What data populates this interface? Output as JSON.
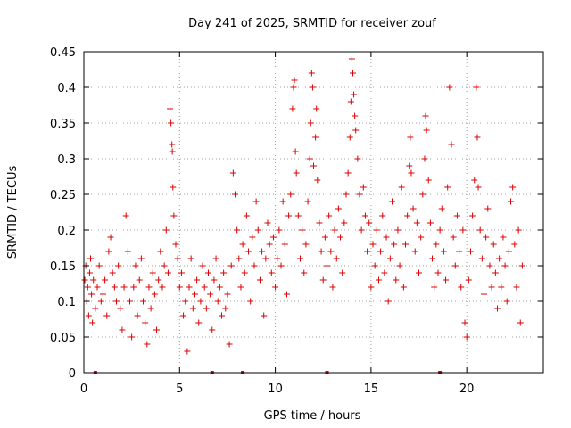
{
  "chart_data": {
    "type": "scatter",
    "title": "Day 241 of 2025, SRMTID for receiver zouf",
    "xlabel": "GPS time / hours",
    "ylabel": "SRMTID / TECUs",
    "xlim": [
      0,
      24
    ],
    "ylim": [
      0,
      0.45
    ],
    "xticks": [
      0,
      5,
      10,
      15,
      20
    ],
    "xtick_labels": [
      "0",
      "5",
      "10",
      "15",
      "20"
    ],
    "yticks": [
      0,
      0.05,
      0.1,
      0.15,
      0.2,
      0.25,
      0.3,
      0.35,
      0.4,
      0.45
    ],
    "ytick_labels": [
      "0",
      "0.05",
      "0.1",
      "0.15",
      "0.2",
      "0.25",
      "0.3",
      "0.35",
      "0.4",
      "0.45"
    ],
    "grid": true,
    "marker": "plus",
    "color": "#dd0000",
    "series": [
      {
        "name": "SRMTID",
        "points": [
          [
            0.05,
            0.13
          ],
          [
            0.1,
            0.15
          ],
          [
            0.15,
            0.1
          ],
          [
            0.2,
            0.12
          ],
          [
            0.25,
            0.08
          ],
          [
            0.3,
            0.14
          ],
          [
            0.35,
            0.16
          ],
          [
            0.4,
            0.11
          ],
          [
            0.45,
            0.07
          ],
          [
            0.5,
            0.13
          ],
          [
            0.6,
            0.09
          ],
          [
            0.7,
            0.12
          ],
          [
            0.8,
            0.15
          ],
          [
            0.9,
            0.1
          ],
          [
            1.0,
            0.11
          ],
          [
            1.1,
            0.13
          ],
          [
            1.2,
            0.08
          ],
          [
            1.3,
            0.17
          ],
          [
            1.4,
            0.19
          ],
          [
            1.5,
            0.14
          ],
          [
            1.6,
            0.12
          ],
          [
            1.7,
            0.1
          ],
          [
            1.8,
            0.15
          ],
          [
            1.9,
            0.09
          ],
          [
            2.0,
            0.06
          ],
          [
            2.1,
            0.12
          ],
          [
            2.2,
            0.22
          ],
          [
            2.3,
            0.17
          ],
          [
            2.4,
            0.1
          ],
          [
            2.5,
            0.05
          ],
          [
            2.6,
            0.12
          ],
          [
            2.7,
            0.15
          ],
          [
            2.8,
            0.08
          ],
          [
            2.9,
            0.13
          ],
          [
            3.0,
            0.16
          ],
          [
            3.1,
            0.1
          ],
          [
            3.2,
            0.07
          ],
          [
            3.3,
            0.04
          ],
          [
            3.4,
            0.12
          ],
          [
            3.5,
            0.09
          ],
          [
            3.6,
            0.14
          ],
          [
            3.7,
            0.11
          ],
          [
            3.8,
            0.06
          ],
          [
            3.9,
            0.13
          ],
          [
            4.0,
            0.17
          ],
          [
            4.1,
            0.12
          ],
          [
            4.2,
            0.15
          ],
          [
            4.3,
            0.2
          ],
          [
            4.4,
            0.14
          ],
          [
            4.5,
            0.37
          ],
          [
            4.55,
            0.35
          ],
          [
            4.6,
            0.32
          ],
          [
            4.62,
            0.31
          ],
          [
            4.65,
            0.26
          ],
          [
            4.7,
            0.22
          ],
          [
            4.8,
            0.18
          ],
          [
            4.9,
            0.16
          ],
          [
            5.0,
            0.12
          ],
          [
            5.1,
            0.14
          ],
          [
            5.2,
            0.08
          ],
          [
            5.3,
            0.1
          ],
          [
            5.4,
            0.03
          ],
          [
            5.5,
            0.12
          ],
          [
            5.6,
            0.16
          ],
          [
            5.7,
            0.09
          ],
          [
            5.8,
            0.11
          ],
          [
            5.9,
            0.13
          ],
          [
            6.0,
            0.07
          ],
          [
            6.1,
            0.1
          ],
          [
            6.2,
            0.15
          ],
          [
            6.3,
            0.12
          ],
          [
            6.4,
            0.09
          ],
          [
            6.5,
            0.14
          ],
          [
            6.6,
            0.11
          ],
          [
            6.7,
            0.06
          ],
          [
            6.8,
            0.13
          ],
          [
            6.9,
            0.16
          ],
          [
            7.0,
            0.1
          ],
          [
            7.1,
            0.12
          ],
          [
            7.2,
            0.08
          ],
          [
            7.3,
            0.14
          ],
          [
            7.4,
            0.09
          ],
          [
            7.5,
            0.11
          ],
          [
            7.6,
            0.04
          ],
          [
            7.7,
            0.15
          ],
          [
            7.8,
            0.28
          ],
          [
            7.9,
            0.25
          ],
          [
            8.0,
            0.2
          ],
          [
            8.1,
            0.16
          ],
          [
            8.2,
            0.12
          ],
          [
            8.3,
            0.18
          ],
          [
            8.4,
            0.14
          ],
          [
            8.5,
            0.22
          ],
          [
            8.6,
            0.17
          ],
          [
            8.7,
            0.1
          ],
          [
            8.8,
            0.19
          ],
          [
            8.9,
            0.15
          ],
          [
            9.0,
            0.24
          ],
          [
            9.1,
            0.2
          ],
          [
            9.2,
            0.13
          ],
          [
            9.3,
            0.17
          ],
          [
            9.4,
            0.08
          ],
          [
            9.5,
            0.16
          ],
          [
            9.6,
            0.21
          ],
          [
            9.7,
            0.18
          ],
          [
            9.8,
            0.14
          ],
          [
            9.9,
            0.19
          ],
          [
            10.0,
            0.12
          ],
          [
            10.1,
            0.16
          ],
          [
            10.2,
            0.2
          ],
          [
            10.3,
            0.15
          ],
          [
            10.4,
            0.24
          ],
          [
            10.5,
            0.18
          ],
          [
            10.6,
            0.11
          ],
          [
            10.7,
            0.22
          ],
          [
            10.8,
            0.25
          ],
          [
            10.9,
            0.37
          ],
          [
            10.95,
            0.4
          ],
          [
            11.0,
            0.41
          ],
          [
            11.05,
            0.31
          ],
          [
            11.1,
            0.28
          ],
          [
            11.2,
            0.22
          ],
          [
            11.3,
            0.16
          ],
          [
            11.4,
            0.2
          ],
          [
            11.5,
            0.14
          ],
          [
            11.6,
            0.18
          ],
          [
            11.7,
            0.24
          ],
          [
            11.8,
            0.3
          ],
          [
            11.85,
            0.35
          ],
          [
            11.9,
            0.42
          ],
          [
            11.95,
            0.4
          ],
          [
            12.0,
            0.29
          ],
          [
            12.1,
            0.33
          ],
          [
            12.15,
            0.37
          ],
          [
            12.2,
            0.27
          ],
          [
            12.3,
            0.21
          ],
          [
            12.4,
            0.17
          ],
          [
            12.5,
            0.13
          ],
          [
            12.6,
            0.19
          ],
          [
            12.7,
            0.15
          ],
          [
            12.8,
            0.22
          ],
          [
            12.9,
            0.17
          ],
          [
            13.0,
            0.12
          ],
          [
            13.1,
            0.2
          ],
          [
            13.2,
            0.16
          ],
          [
            13.3,
            0.23
          ],
          [
            13.4,
            0.19
          ],
          [
            13.5,
            0.14
          ],
          [
            13.6,
            0.21
          ],
          [
            13.7,
            0.25
          ],
          [
            13.8,
            0.28
          ],
          [
            13.9,
            0.33
          ],
          [
            13.95,
            0.38
          ],
          [
            14.0,
            0.44
          ],
          [
            14.05,
            0.42
          ],
          [
            14.1,
            0.39
          ],
          [
            14.15,
            0.36
          ],
          [
            14.2,
            0.34
          ],
          [
            14.3,
            0.3
          ],
          [
            14.4,
            0.25
          ],
          [
            14.5,
            0.2
          ],
          [
            14.6,
            0.26
          ],
          [
            14.7,
            0.22
          ],
          [
            14.8,
            0.17
          ],
          [
            14.9,
            0.21
          ],
          [
            15.0,
            0.12
          ],
          [
            15.1,
            0.18
          ],
          [
            15.2,
            0.15
          ],
          [
            15.3,
            0.2
          ],
          [
            15.4,
            0.13
          ],
          [
            15.5,
            0.17
          ],
          [
            15.6,
            0.22
          ],
          [
            15.7,
            0.14
          ],
          [
            15.8,
            0.19
          ],
          [
            15.9,
            0.1
          ],
          [
            16.0,
            0.16
          ],
          [
            16.1,
            0.24
          ],
          [
            16.2,
            0.18
          ],
          [
            16.3,
            0.13
          ],
          [
            16.4,
            0.2
          ],
          [
            16.5,
            0.15
          ],
          [
            16.6,
            0.26
          ],
          [
            16.7,
            0.12
          ],
          [
            16.8,
            0.18
          ],
          [
            16.9,
            0.22
          ],
          [
            17.0,
            0.29
          ],
          [
            17.05,
            0.33
          ],
          [
            17.1,
            0.28
          ],
          [
            17.2,
            0.23
          ],
          [
            17.3,
            0.17
          ],
          [
            17.4,
            0.21
          ],
          [
            17.5,
            0.14
          ],
          [
            17.6,
            0.19
          ],
          [
            17.7,
            0.25
          ],
          [
            17.8,
            0.3
          ],
          [
            17.85,
            0.36
          ],
          [
            17.9,
            0.34
          ],
          [
            18.0,
            0.27
          ],
          [
            18.1,
            0.21
          ],
          [
            18.2,
            0.16
          ],
          [
            18.3,
            0.12
          ],
          [
            18.4,
            0.18
          ],
          [
            18.5,
            0.14
          ],
          [
            18.6,
            0.2
          ],
          [
            18.7,
            0.23
          ],
          [
            18.8,
            0.17
          ],
          [
            18.9,
            0.13
          ],
          [
            19.0,
            0.26
          ],
          [
            19.1,
            0.4
          ],
          [
            19.2,
            0.32
          ],
          [
            19.3,
            0.19
          ],
          [
            19.4,
            0.15
          ],
          [
            19.5,
            0.22
          ],
          [
            19.6,
            0.17
          ],
          [
            19.7,
            0.12
          ],
          [
            19.8,
            0.2
          ],
          [
            19.9,
            0.07
          ],
          [
            20.0,
            0.05
          ],
          [
            20.1,
            0.13
          ],
          [
            20.2,
            0.17
          ],
          [
            20.3,
            0.22
          ],
          [
            20.4,
            0.27
          ],
          [
            20.5,
            0.4
          ],
          [
            20.55,
            0.33
          ],
          [
            20.6,
            0.26
          ],
          [
            20.7,
            0.2
          ],
          [
            20.8,
            0.16
          ],
          [
            20.9,
            0.11
          ],
          [
            21.0,
            0.19
          ],
          [
            21.1,
            0.23
          ],
          [
            21.2,
            0.15
          ],
          [
            21.3,
            0.12
          ],
          [
            21.4,
            0.18
          ],
          [
            21.5,
            0.14
          ],
          [
            21.6,
            0.09
          ],
          [
            21.7,
            0.16
          ],
          [
            21.8,
            0.12
          ],
          [
            21.9,
            0.19
          ],
          [
            22.0,
            0.15
          ],
          [
            22.1,
            0.1
          ],
          [
            22.2,
            0.17
          ],
          [
            22.3,
            0.24
          ],
          [
            22.4,
            0.26
          ],
          [
            22.5,
            0.18
          ],
          [
            22.6,
            0.12
          ],
          [
            22.7,
            0.2
          ],
          [
            22.8,
            0.07
          ],
          [
            22.9,
            0.15
          ]
        ]
      }
    ],
    "baseline_markers": [
      0.6,
      6.7,
      8.3,
      12.7,
      18.6
    ]
  }
}
